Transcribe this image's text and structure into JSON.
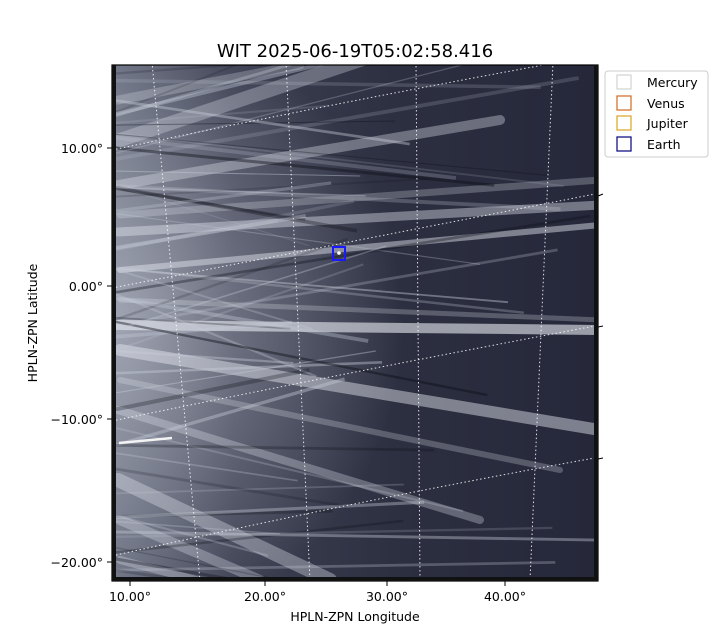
{
  "figure": {
    "title": "WIT 2025-06-19T05:02:58.416",
    "xlabel": "HPLN-ZPN Longitude",
    "ylabel": "HPLN-ZPN Latitude"
  },
  "axes": {
    "x_ticks": [
      "10.00°",
      "20.00°",
      "30.00°",
      "40.00°"
    ],
    "y_ticks": [
      "10.00°",
      "0.00°",
      "−10.00°",
      "−20.00°"
    ]
  },
  "legend": {
    "placement": "upper-right outside",
    "items": [
      {
        "label": "Mercury",
        "color": "#d3d3d3"
      },
      {
        "label": "Venus",
        "color": "#d2691e"
      },
      {
        "label": "Jupiter",
        "color": "#daa520"
      },
      {
        "label": "Earth",
        "color": "#000080"
      }
    ]
  },
  "image": {
    "colormap": "gray-blue",
    "grid": "dotted white coordinate grid",
    "marker_color": "#1a1aff"
  }
}
